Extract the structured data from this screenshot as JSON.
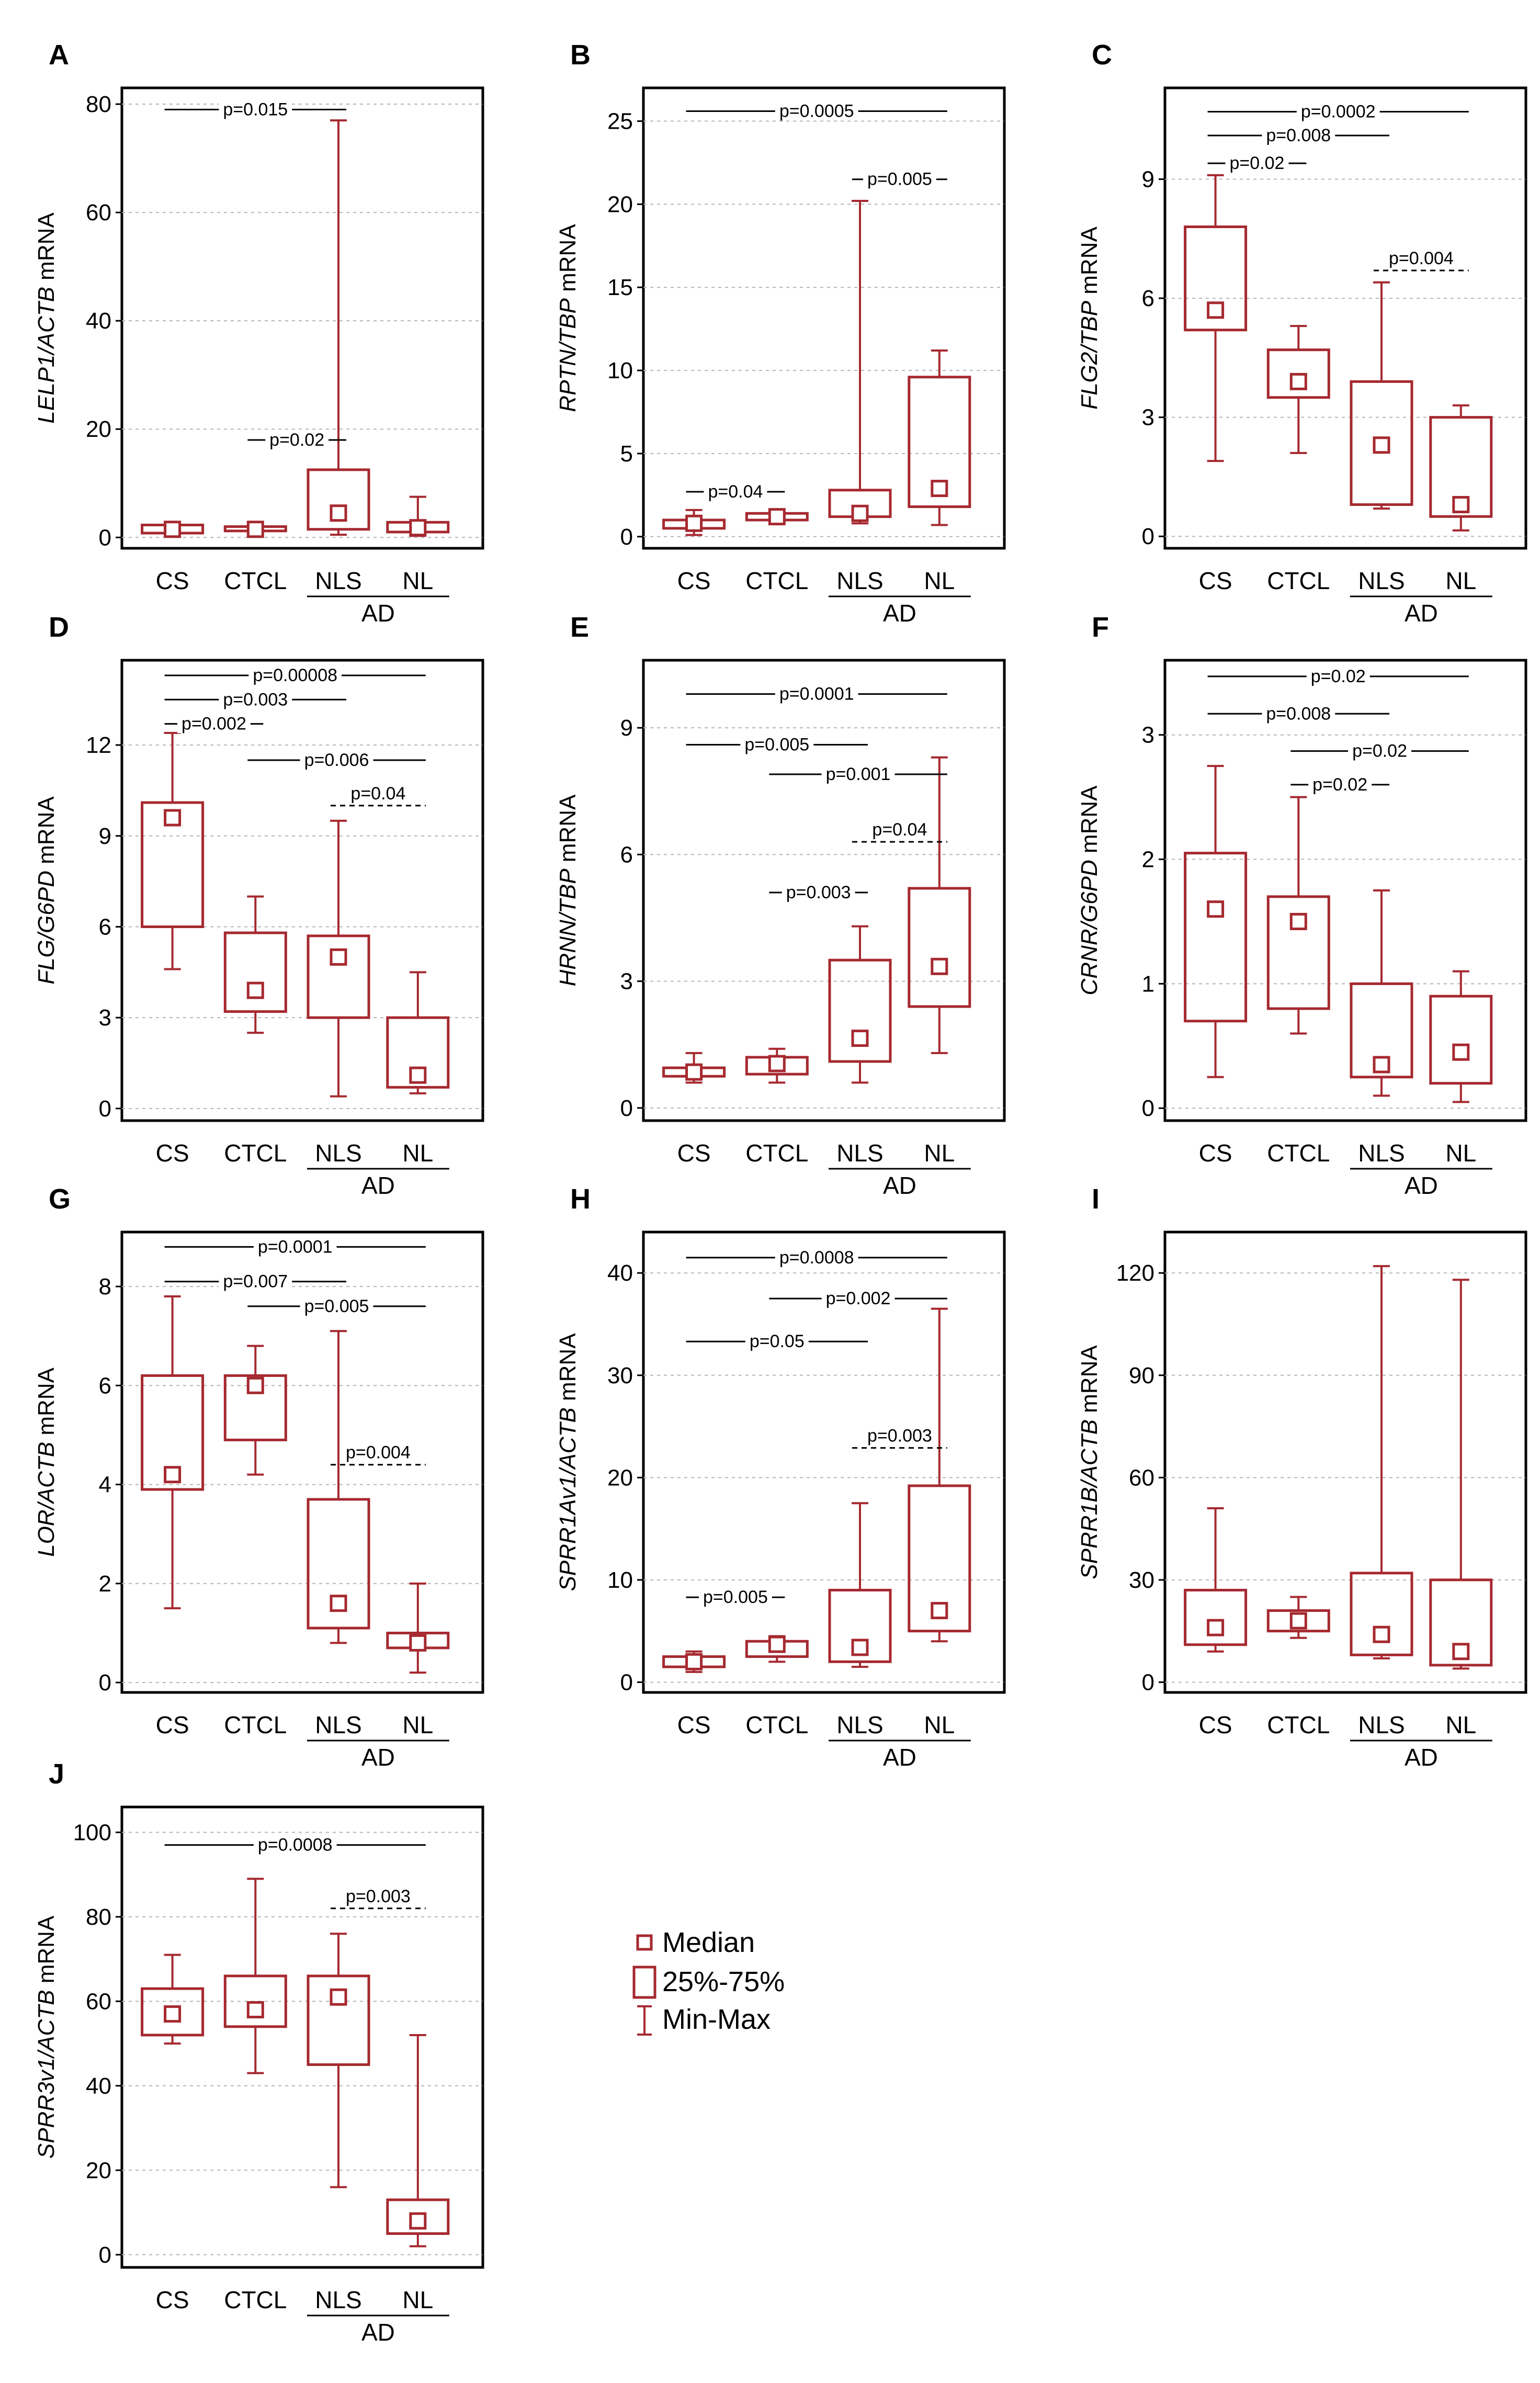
{
  "colors": {
    "accent": "#a62930",
    "frame": "#000000",
    "grid": "#b5b5b5"
  },
  "legend": {
    "median": "Median",
    "iqr": "25%-75%",
    "range": "Min-Max"
  },
  "chart_data": [
    {
      "letter": "A",
      "type": "boxplot",
      "ylabel": [
        {
          "t": "LELP1/ACTB",
          "i": true
        },
        {
          "t": " mRNA",
          "i": false
        }
      ],
      "ylim": [
        -2,
        83
      ],
      "ticks": [
        0,
        20,
        40,
        60,
        80
      ],
      "categories": [
        "CS",
        "CTCL",
        "NLS",
        "NL"
      ],
      "group_label": "AD",
      "group_members": [
        "NLS",
        "NL"
      ],
      "boxes": [
        {
          "min": 0.5,
          "q1": 0.8,
          "median": 1.5,
          "q3": 2.3,
          "max": 2.8
        },
        {
          "min": 0.9,
          "q1": 1.2,
          "median": 1.5,
          "q3": 2.0,
          "max": 2.5
        },
        {
          "min": 0.5,
          "q1": 1.5,
          "median": 4.5,
          "q3": 12.5,
          "max": 77
        },
        {
          "min": 0.3,
          "q1": 1.0,
          "median": 1.8,
          "q3": 2.8,
          "max": 7.5
        }
      ],
      "pvalues": [
        {
          "label": "p=0.015",
          "from": "CS",
          "to": "NLS",
          "y": 79,
          "dashed": false
        },
        {
          "label": "p=0.02",
          "from": "CTCL",
          "to": "NLS",
          "y": 18,
          "dashed": false
        }
      ]
    },
    {
      "letter": "B",
      "type": "boxplot",
      "ylabel": [
        {
          "t": "RPTN/TBP",
          "i": true
        },
        {
          "t": " mRNA",
          "i": false
        }
      ],
      "ylim": [
        -0.7,
        27
      ],
      "ticks": [
        0,
        5,
        10,
        15,
        20,
        25
      ],
      "categories": [
        "CS",
        "CTCL",
        "NLS",
        "NL"
      ],
      "group_label": "AD",
      "group_members": [
        "NLS",
        "NL"
      ],
      "boxes": [
        {
          "min": 0.1,
          "q1": 0.5,
          "median": 0.8,
          "q3": 1.0,
          "max": 1.6
        },
        {
          "min": 0.8,
          "q1": 1.0,
          "median": 1.2,
          "q3": 1.4,
          "max": 1.5
        },
        {
          "min": 0.8,
          "q1": 1.2,
          "median": 1.4,
          "q3": 2.8,
          "max": 20.2
        },
        {
          "min": 0.7,
          "q1": 1.8,
          "median": 2.9,
          "q3": 9.6,
          "max": 11.2
        }
      ],
      "pvalues": [
        {
          "label": "p=0.0005",
          "from": "CS",
          "to": "NL",
          "y": 25.6,
          "dashed": false
        },
        {
          "label": "p=0.005",
          "from": "NLS",
          "to": "NL",
          "y": 21.5,
          "dashed": false
        },
        {
          "label": "p=0.04",
          "from": "CS",
          "to": "CTCL",
          "y": 2.7,
          "dashed": false
        }
      ]
    },
    {
      "letter": "C",
      "type": "boxplot",
      "ylabel": [
        {
          "t": "FLG2/TBP",
          "i": true
        },
        {
          "t": " mRNA",
          "i": false
        }
      ],
      "ylim": [
        -0.3,
        11.3
      ],
      "ticks": [
        0,
        3,
        6,
        9
      ],
      "categories": [
        "CS",
        "CTCL",
        "NLS",
        "NL"
      ],
      "group_label": "AD",
      "group_members": [
        "NLS",
        "NL"
      ],
      "boxes": [
        {
          "min": 1.9,
          "q1": 5.2,
          "median": 5.7,
          "q3": 7.8,
          "max": 9.1
        },
        {
          "min": 2.1,
          "q1": 3.5,
          "median": 3.9,
          "q3": 4.7,
          "max": 5.3
        },
        {
          "min": 0.7,
          "q1": 0.8,
          "median": 2.3,
          "q3": 3.9,
          "max": 6.4
        },
        {
          "min": 0.15,
          "q1": 0.5,
          "median": 0.8,
          "q3": 3.0,
          "max": 3.3
        }
      ],
      "pvalues": [
        {
          "label": "p=0.0002",
          "from": "CS",
          "to": "NL",
          "y": 10.7,
          "dashed": false
        },
        {
          "label": "p=0.008",
          "from": "CS",
          "to": "NLS",
          "y": 10.1,
          "dashed": false
        },
        {
          "label": "p=0.02",
          "from": "CS",
          "to": "CTCL",
          "y": 9.4,
          "dashed": false
        },
        {
          "label": "p=0.004",
          "from": "NLS",
          "to": "NL",
          "y": 6.7,
          "dashed": true
        }
      ]
    },
    {
      "letter": "D",
      "type": "boxplot",
      "ylabel": [
        {
          "t": "FLG/G6PD",
          "i": true
        },
        {
          "t": " mRNA",
          "i": false
        }
      ],
      "ylim": [
        -0.4,
        14.8
      ],
      "ticks": [
        0,
        3,
        6,
        9,
        12
      ],
      "categories": [
        "CS",
        "CTCL",
        "NLS",
        "NL"
      ],
      "group_label": "AD",
      "group_members": [
        "NLS",
        "NL"
      ],
      "boxes": [
        {
          "min": 4.6,
          "q1": 6.0,
          "median": 9.6,
          "q3": 10.1,
          "max": 12.4
        },
        {
          "min": 2.5,
          "q1": 3.2,
          "median": 3.9,
          "q3": 5.8,
          "max": 7.0
        },
        {
          "min": 0.4,
          "q1": 3.0,
          "median": 5.0,
          "q3": 5.7,
          "max": 9.5
        },
        {
          "min": 0.5,
          "q1": 0.7,
          "median": 1.1,
          "q3": 3.0,
          "max": 4.5
        }
      ],
      "pvalues": [
        {
          "label": "p=0.00008",
          "from": "CS",
          "to": "NL",
          "y": 14.3,
          "dashed": false
        },
        {
          "label": "p=0.003",
          "from": "CS",
          "to": "NLS",
          "y": 13.5,
          "dashed": false
        },
        {
          "label": "p=0.002",
          "from": "CS",
          "to": "CTCL",
          "y": 12.7,
          "dashed": false
        },
        {
          "label": "p=0.006",
          "from": "CTCL",
          "to": "NL",
          "y": 11.5,
          "dashed": false
        },
        {
          "label": "p=0.04",
          "from": "NLS",
          "to": "NL",
          "y": 10.0,
          "dashed": true
        }
      ]
    },
    {
      "letter": "E",
      "type": "boxplot",
      "ylabel": [
        {
          "t": "HRNN/TBP",
          "i": true
        },
        {
          "t": " mRNA",
          "i": false
        }
      ],
      "ylim": [
        -0.3,
        10.6
      ],
      "ticks": [
        0,
        3,
        6,
        9
      ],
      "categories": [
        "CS",
        "CTCL",
        "NLS",
        "NL"
      ],
      "group_label": "AD",
      "group_members": [
        "NLS",
        "NL"
      ],
      "boxes": [
        {
          "min": 0.6,
          "q1": 0.75,
          "median": 0.85,
          "q3": 0.95,
          "max": 1.3
        },
        {
          "min": 0.6,
          "q1": 0.8,
          "median": 1.05,
          "q3": 1.2,
          "max": 1.4
        },
        {
          "min": 0.6,
          "q1": 1.1,
          "median": 1.65,
          "q3": 3.5,
          "max": 4.3
        },
        {
          "min": 1.3,
          "q1": 2.4,
          "median": 3.35,
          "q3": 5.2,
          "max": 8.3
        }
      ],
      "pvalues": [
        {
          "label": "p=0.0001",
          "from": "CS",
          "to": "NL",
          "y": 9.8,
          "dashed": false
        },
        {
          "label": "p=0.005",
          "from": "CS",
          "to": "NLS",
          "y": 8.6,
          "dashed": false
        },
        {
          "label": "p=0.001",
          "from": "CTCL",
          "to": "NL",
          "y": 7.9,
          "dashed": false
        },
        {
          "label": "p=0.04",
          "from": "NLS",
          "to": "NL",
          "y": 6.3,
          "dashed": true
        },
        {
          "label": "p=0.003",
          "from": "CTCL",
          "to": "NLS",
          "y": 5.1,
          "dashed": false
        }
      ]
    },
    {
      "letter": "F",
      "type": "boxplot",
      "ylabel": [
        {
          "t": "CRNR/G6PD",
          "i": true
        },
        {
          "t": " mRNA",
          "i": false
        }
      ],
      "ylim": [
        -0.1,
        3.6
      ],
      "ticks": [
        0,
        1,
        2,
        3
      ],
      "categories": [
        "CS",
        "CTCL",
        "NLS",
        "NL"
      ],
      "group_label": "AD",
      "group_members": [
        "NLS",
        "NL"
      ],
      "boxes": [
        {
          "min": 0.25,
          "q1": 0.7,
          "median": 1.6,
          "q3": 2.05,
          "max": 2.75
        },
        {
          "min": 0.6,
          "q1": 0.8,
          "median": 1.5,
          "q3": 1.7,
          "max": 2.5
        },
        {
          "min": 0.1,
          "q1": 0.25,
          "median": 0.35,
          "q3": 1.0,
          "max": 1.75
        },
        {
          "min": 0.05,
          "q1": 0.2,
          "median": 0.45,
          "q3": 0.9,
          "max": 1.1
        }
      ],
      "pvalues": [
        {
          "label": "p=0.02",
          "from": "CS",
          "to": "NL",
          "y": 3.47,
          "dashed": false
        },
        {
          "label": "p=0.008",
          "from": "CS",
          "to": "NLS",
          "y": 3.17,
          "dashed": false
        },
        {
          "label": "p=0.02",
          "from": "CTCL",
          "to": "NL",
          "y": 2.87,
          "dashed": false
        },
        {
          "label": "p=0.02",
          "from": "CTCL",
          "to": "NLS",
          "y": 2.6,
          "dashed": false
        }
      ]
    },
    {
      "letter": "G",
      "type": "boxplot",
      "ylabel": [
        {
          "t": "LOR/ACTB",
          "i": true
        },
        {
          "t": " mRNA",
          "i": false
        }
      ],
      "ylim": [
        -0.2,
        9.1
      ],
      "ticks": [
        0,
        2,
        4,
        6,
        8
      ],
      "categories": [
        "CS",
        "CTCL",
        "NLS",
        "NL"
      ],
      "group_label": "AD",
      "group_members": [
        "NLS",
        "NL"
      ],
      "boxes": [
        {
          "min": 1.5,
          "q1": 3.9,
          "median": 4.2,
          "q3": 6.2,
          "max": 7.8
        },
        {
          "min": 4.2,
          "q1": 4.9,
          "median": 6.0,
          "q3": 6.2,
          "max": 6.8
        },
        {
          "min": 0.8,
          "q1": 1.1,
          "median": 1.6,
          "q3": 3.7,
          "max": 7.1
        },
        {
          "min": 0.2,
          "q1": 0.7,
          "median": 0.8,
          "q3": 1.0,
          "max": 2.0
        }
      ],
      "pvalues": [
        {
          "label": "p=0.0001",
          "from": "CS",
          "to": "NL",
          "y": 8.8,
          "dashed": false
        },
        {
          "label": "p=0.007",
          "from": "CS",
          "to": "NLS",
          "y": 8.1,
          "dashed": false
        },
        {
          "label": "p=0.005",
          "from": "CTCL",
          "to": "NL",
          "y": 7.6,
          "dashed": false
        },
        {
          "label": "p=0.004",
          "from": "NLS",
          "to": "NL",
          "y": 4.4,
          "dashed": true
        }
      ]
    },
    {
      "letter": "H",
      "type": "boxplot",
      "ylabel": [
        {
          "t": "SPRR1Av1/ACTB",
          "i": true
        },
        {
          "t": " mRNA",
          "i": false
        }
      ],
      "ylim": [
        -1,
        44
      ],
      "ticks": [
        0,
        10,
        20,
        30,
        40
      ],
      "categories": [
        "CS",
        "CTCL",
        "NLS",
        "NL"
      ],
      "group_label": "AD",
      "group_members": [
        "NLS",
        "NL"
      ],
      "boxes": [
        {
          "min": 1.0,
          "q1": 1.5,
          "median": 2.0,
          "q3": 2.5,
          "max": 3.0
        },
        {
          "min": 2.0,
          "q1": 2.5,
          "median": 3.7,
          "q3": 4.0,
          "max": 4.5
        },
        {
          "min": 1.5,
          "q1": 2.0,
          "median": 3.4,
          "q3": 9.0,
          "max": 17.5
        },
        {
          "min": 4.0,
          "q1": 5.0,
          "median": 7.0,
          "q3": 19.2,
          "max": 36.5
        }
      ],
      "pvalues": [
        {
          "label": "p=0.0008",
          "from": "CS",
          "to": "NL",
          "y": 41.5,
          "dashed": false
        },
        {
          "label": "p=0.002",
          "from": "CTCL",
          "to": "NL",
          "y": 37.5,
          "dashed": false
        },
        {
          "label": "p=0.05",
          "from": "CS",
          "to": "NLS",
          "y": 33.3,
          "dashed": false
        },
        {
          "label": "p=0.003",
          "from": "NLS",
          "to": "NL",
          "y": 22.9,
          "dashed": true
        },
        {
          "label": "p=0.005",
          "from": "CS",
          "to": "CTCL",
          "y": 8.3,
          "dashed": false
        }
      ]
    },
    {
      "letter": "I",
      "type": "boxplot",
      "ylabel": [
        {
          "t": "SPRR1B/ACTB",
          "i": true
        },
        {
          "t": " mRNA",
          "i": false
        }
      ],
      "ylim": [
        -3,
        132
      ],
      "ticks": [
        0,
        30,
        60,
        90,
        120
      ],
      "categories": [
        "CS",
        "CTCL",
        "NLS",
        "NL"
      ],
      "group_label": "AD",
      "group_members": [
        "NLS",
        "NL"
      ],
      "boxes": [
        {
          "min": 9,
          "q1": 11,
          "median": 16,
          "q3": 27,
          "max": 51
        },
        {
          "min": 13,
          "q1": 15,
          "median": 18,
          "q3": 21,
          "max": 25
        },
        {
          "min": 7,
          "q1": 8,
          "median": 14,
          "q3": 32,
          "max": 122
        },
        {
          "min": 4,
          "q1": 5,
          "median": 9,
          "q3": 30,
          "max": 118
        }
      ],
      "pvalues": []
    },
    {
      "letter": "J",
      "type": "boxplot",
      "ylabel": [
        {
          "t": "SPRR3v1/ACTB",
          "i": true
        },
        {
          "t": " mRNA",
          "i": false
        }
      ],
      "ylim": [
        -3,
        106
      ],
      "ticks": [
        0,
        20,
        40,
        60,
        80,
        100
      ],
      "categories": [
        "CS",
        "CTCL",
        "NLS",
        "NL"
      ],
      "group_label": "AD",
      "group_members": [
        "NLS",
        "NL"
      ],
      "boxes": [
        {
          "min": 50,
          "q1": 52,
          "median": 57,
          "q3": 63,
          "max": 71
        },
        {
          "min": 43,
          "q1": 54,
          "median": 58,
          "q3": 66,
          "max": 89
        },
        {
          "min": 16,
          "q1": 45,
          "median": 61,
          "q3": 66,
          "max": 76
        },
        {
          "min": 2,
          "q1": 5,
          "median": 8,
          "q3": 13,
          "max": 52
        }
      ],
      "pvalues": [
        {
          "label": "p=0.0008",
          "from": "CS",
          "to": "NL",
          "y": 97,
          "dashed": false
        },
        {
          "label": "p=0.003",
          "from": "NLS",
          "to": "NL",
          "y": 82,
          "dashed": true
        }
      ]
    }
  ]
}
